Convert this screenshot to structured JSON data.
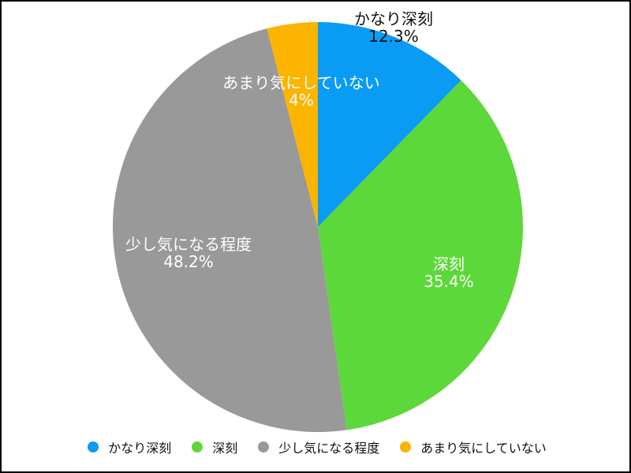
{
  "chart_data": {
    "type": "pie",
    "title": "",
    "start_angle_deg": 0,
    "direction": "clockwise",
    "legend_position": "bottom",
    "slices": [
      {
        "label": "かなり深刻",
        "value": 12.3,
        "value_label": "12.3%",
        "color": "#0a9bf5",
        "label_color": "#111111"
      },
      {
        "label": "深刻",
        "value": 35.4,
        "value_label": "35.4%",
        "color": "#5dd83a",
        "label_color": "#ffffff"
      },
      {
        "label": "少し気になる程度",
        "value": 48.2,
        "value_label": "48.2%",
        "color": "#999999",
        "label_color": "#ffffff"
      },
      {
        "label": "あまり気にしていない",
        "value": 4,
        "value_label": "4%",
        "color": "#fbb400",
        "label_color": "#ffffff"
      }
    ]
  }
}
